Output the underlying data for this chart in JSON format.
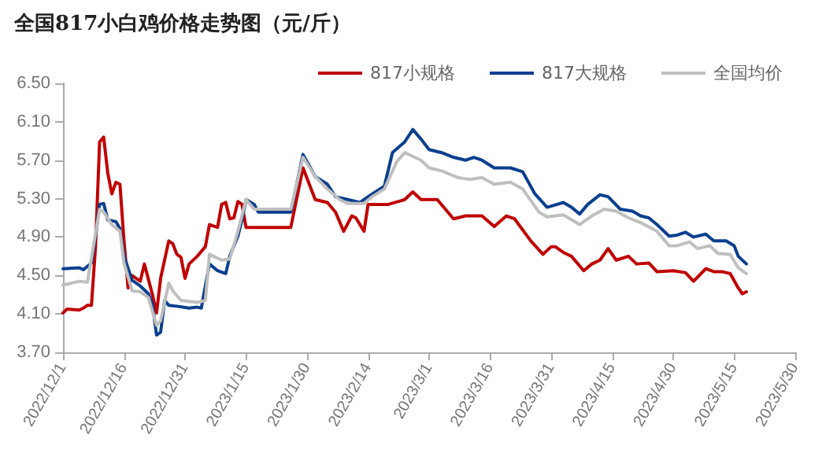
{
  "chart_data": {
    "type": "line",
    "title": "全国817小白鸡价格走势图（元/斤）",
    "legend": "top",
    "grid": false,
    "marker": "none",
    "line_style": "solid",
    "xlim": [
      "2022-12-01",
      "2023-05-30"
    ],
    "xticks": [
      {
        "value": "2022-12-01",
        "label": "2022/12/1"
      },
      {
        "value": "2022-12-16",
        "label": "2022/12/16"
      },
      {
        "value": "2022-12-31",
        "label": "2022/12/31"
      },
      {
        "value": "2023-01-15",
        "label": "2023/1/15"
      },
      {
        "value": "2023-01-30",
        "label": "2023/1/30"
      },
      {
        "value": "2023-02-14",
        "label": "2023/2/14"
      },
      {
        "value": "2023-03-01",
        "label": "2023/3/1"
      },
      {
        "value": "2023-03-16",
        "label": "2023/3/16"
      },
      {
        "value": "2023-03-31",
        "label": "2023/3/31"
      },
      {
        "value": "2023-04-15",
        "label": "2023/4/15"
      },
      {
        "value": "2023-04-30",
        "label": "2023/4/30"
      },
      {
        "value": "2023-05-15",
        "label": "2023/5/15"
      },
      {
        "value": "2023-05-30",
        "label": "2023/5/30"
      }
    ],
    "ylim": [
      3.7,
      6.5
    ],
    "yticks": [
      {
        "value": 3.7,
        "label": "3.70"
      },
      {
        "value": 4.1,
        "label": "4.10"
      },
      {
        "value": 4.5,
        "label": "4.50"
      },
      {
        "value": 4.9,
        "label": "4.90"
      },
      {
        "value": 5.3,
        "label": "5.30"
      },
      {
        "value": 5.7,
        "label": "5.70"
      },
      {
        "value": 6.1,
        "label": "6.10"
      },
      {
        "value": 6.5,
        "label": "6.50"
      }
    ],
    "series": [
      {
        "name": "817小规格",
        "color": "#c00000",
        "x": [
          "2022-12-01",
          "2022-12-02",
          "2022-12-05",
          "2022-12-06",
          "2022-12-07",
          "2022-12-08",
          "2022-12-09",
          "2022-12-10",
          "2022-12-11",
          "2022-12-12",
          "2022-12-13",
          "2022-12-14",
          "2022-12-15",
          "2022-12-16",
          "2022-12-17",
          "2022-12-18",
          "2022-12-20",
          "2022-12-21",
          "2022-12-23",
          "2022-12-24",
          "2022-12-25",
          "2022-12-27",
          "2022-12-28",
          "2022-12-29",
          "2022-12-30",
          "2022-12-31",
          "2023-01-01",
          "2023-01-03",
          "2023-01-05",
          "2023-01-06",
          "2023-01-08",
          "2023-01-09",
          "2023-01-10",
          "2023-01-11",
          "2023-01-12",
          "2023-01-13",
          "2023-01-14",
          "2023-01-15",
          "2023-01-26",
          "2023-01-29",
          "2023-02-01",
          "2023-02-04",
          "2023-02-06",
          "2023-02-08",
          "2023-02-10",
          "2023-02-11",
          "2023-02-13",
          "2023-02-14",
          "2023-02-19",
          "2023-02-23",
          "2023-02-25",
          "2023-02-27",
          "2023-03-03",
          "2023-03-07",
          "2023-03-10",
          "2023-03-14",
          "2023-03-17",
          "2023-03-20",
          "2023-03-22",
          "2023-03-26",
          "2023-03-29",
          "2023-03-31",
          "2023-04-01",
          "2023-04-03",
          "2023-04-05",
          "2023-04-08",
          "2023-04-10",
          "2023-04-12",
          "2023-04-14",
          "2023-04-16",
          "2023-04-19",
          "2023-04-21",
          "2023-04-24",
          "2023-04-26",
          "2023-04-30",
          "2023-05-03",
          "2023-05-05",
          "2023-05-08",
          "2023-05-10",
          "2023-05-12",
          "2023-05-14",
          "2023-05-16",
          "2023-05-17",
          "2023-05-18"
        ],
        "values": [
          4.11,
          4.15,
          4.14,
          4.16,
          4.19,
          4.19,
          4.8,
          5.89,
          5.94,
          5.57,
          5.35,
          5.47,
          5.45,
          4.86,
          4.37,
          4.5,
          4.44,
          4.62,
          4.3,
          4.11,
          4.47,
          4.86,
          4.83,
          4.72,
          4.69,
          4.47,
          4.62,
          4.7,
          4.8,
          5.03,
          5.0,
          5.24,
          5.26,
          5.09,
          5.1,
          5.27,
          5.24,
          5.0,
          5.0,
          5.62,
          5.29,
          5.26,
          5.16,
          4.96,
          5.12,
          5.1,
          4.96,
          5.24,
          5.24,
          5.29,
          5.37,
          5.29,
          5.29,
          5.09,
          5.12,
          5.12,
          5.01,
          5.12,
          5.09,
          4.86,
          4.72,
          4.8,
          4.8,
          4.74,
          4.7,
          4.55,
          4.62,
          4.66,
          4.78,
          4.66,
          4.7,
          4.62,
          4.63,
          4.54,
          4.55,
          4.53,
          4.44,
          4.57,
          4.54,
          4.54,
          4.52,
          4.37,
          4.31,
          4.33
        ]
      },
      {
        "name": "817大规格",
        "color": "#0b3f8f",
        "x": [
          "2022-12-01",
          "2022-12-05",
          "2022-12-06",
          "2022-12-08",
          "2022-12-09",
          "2022-12-10",
          "2022-12-11",
          "2022-12-12",
          "2022-12-14",
          "2022-12-15",
          "2022-12-16",
          "2022-12-18",
          "2022-12-20",
          "2022-12-22",
          "2022-12-23",
          "2022-12-24",
          "2022-12-25",
          "2022-12-26",
          "2022-12-27",
          "2022-12-29",
          "2023-01-01",
          "2023-01-03",
          "2023-01-04",
          "2023-01-06",
          "2023-01-08",
          "2023-01-10",
          "2023-01-11",
          "2023-01-13",
          "2023-01-14",
          "2023-01-15",
          "2023-01-17",
          "2023-01-18",
          "2023-01-26",
          "2023-01-29",
          "2023-02-01",
          "2023-02-04",
          "2023-02-06",
          "2023-02-09",
          "2023-02-12",
          "2023-02-14",
          "2023-02-18",
          "2023-02-20",
          "2023-02-23",
          "2023-02-25",
          "2023-02-27",
          "2023-03-01",
          "2023-03-04",
          "2023-03-07",
          "2023-03-10",
          "2023-03-12",
          "2023-03-14",
          "2023-03-17",
          "2023-03-21",
          "2023-03-24",
          "2023-03-27",
          "2023-03-30",
          "2023-04-03",
          "2023-04-05",
          "2023-04-07",
          "2023-04-09",
          "2023-04-12",
          "2023-04-14",
          "2023-04-17",
          "2023-04-20",
          "2023-04-22",
          "2023-04-24",
          "2023-04-26",
          "2023-04-29",
          "2023-05-01",
          "2023-05-03",
          "2023-05-05",
          "2023-05-08",
          "2023-05-10",
          "2023-05-13",
          "2023-05-15",
          "2023-05-16",
          "2023-05-18"
        ],
        "values": [
          4.57,
          4.58,
          4.56,
          4.63,
          4.91,
          5.24,
          5.25,
          5.08,
          5.06,
          4.99,
          4.7,
          4.45,
          4.39,
          4.31,
          4.2,
          3.88,
          3.91,
          4.24,
          4.19,
          4.18,
          4.16,
          4.17,
          4.16,
          4.62,
          4.55,
          4.52,
          4.7,
          4.91,
          5.08,
          5.29,
          5.24,
          5.16,
          5.16,
          5.76,
          5.53,
          5.45,
          5.32,
          5.29,
          5.26,
          5.32,
          5.43,
          5.78,
          5.89,
          6.02,
          5.92,
          5.81,
          5.78,
          5.73,
          5.7,
          5.73,
          5.7,
          5.62,
          5.62,
          5.58,
          5.35,
          5.21,
          5.26,
          5.21,
          5.14,
          5.24,
          5.34,
          5.32,
          5.19,
          5.17,
          5.12,
          5.1,
          5.03,
          4.91,
          4.92,
          4.95,
          4.9,
          4.93,
          4.86,
          4.86,
          4.81,
          4.7,
          4.62
        ]
      },
      {
        "name": "全国均价",
        "color": "#bfbfbf",
        "x": [
          "2022-12-01",
          "2022-12-05",
          "2022-12-07",
          "2022-12-10",
          "2022-12-11",
          "2022-12-13",
          "2022-12-15",
          "2022-12-16",
          "2022-12-18",
          "2022-12-20",
          "2022-12-22",
          "2022-12-24",
          "2022-12-25",
          "2022-12-27",
          "2022-12-28",
          "2022-12-30",
          "2023-01-03",
          "2023-01-05",
          "2023-01-06",
          "2023-01-09",
          "2023-01-11",
          "2023-01-13",
          "2023-01-15",
          "2023-01-17",
          "2023-01-19",
          "2023-01-26",
          "2023-01-29",
          "2023-02-01",
          "2023-02-04",
          "2023-02-07",
          "2023-02-09",
          "2023-02-13",
          "2023-02-15",
          "2023-02-18",
          "2023-02-21",
          "2023-02-23",
          "2023-02-27",
          "2023-03-01",
          "2023-03-04",
          "2023-03-08",
          "2023-03-11",
          "2023-03-14",
          "2023-03-17",
          "2023-03-21",
          "2023-03-24",
          "2023-03-28",
          "2023-03-30",
          "2023-04-03",
          "2023-04-07",
          "2023-04-10",
          "2023-04-13",
          "2023-04-16",
          "2023-04-19",
          "2023-04-22",
          "2023-04-26",
          "2023-04-29",
          "2023-05-01",
          "2023-05-04",
          "2023-05-06",
          "2023-05-09",
          "2023-05-11",
          "2023-05-14",
          "2023-05-16",
          "2023-05-18"
        ],
        "values": [
          4.4,
          4.44,
          4.43,
          5.19,
          5.16,
          5.03,
          4.96,
          4.63,
          4.34,
          4.33,
          4.27,
          3.98,
          4.03,
          4.42,
          4.34,
          4.24,
          4.22,
          4.24,
          4.72,
          4.66,
          4.67,
          4.96,
          5.29,
          5.19,
          5.19,
          5.19,
          5.73,
          5.53,
          5.4,
          5.29,
          5.25,
          5.25,
          5.32,
          5.4,
          5.68,
          5.78,
          5.7,
          5.62,
          5.59,
          5.52,
          5.5,
          5.52,
          5.45,
          5.47,
          5.4,
          5.16,
          5.11,
          5.13,
          5.03,
          5.12,
          5.19,
          5.17,
          5.1,
          5.05,
          4.96,
          4.81,
          4.81,
          4.85,
          4.78,
          4.81,
          4.73,
          4.72,
          4.58,
          4.52
        ]
      }
    ]
  }
}
